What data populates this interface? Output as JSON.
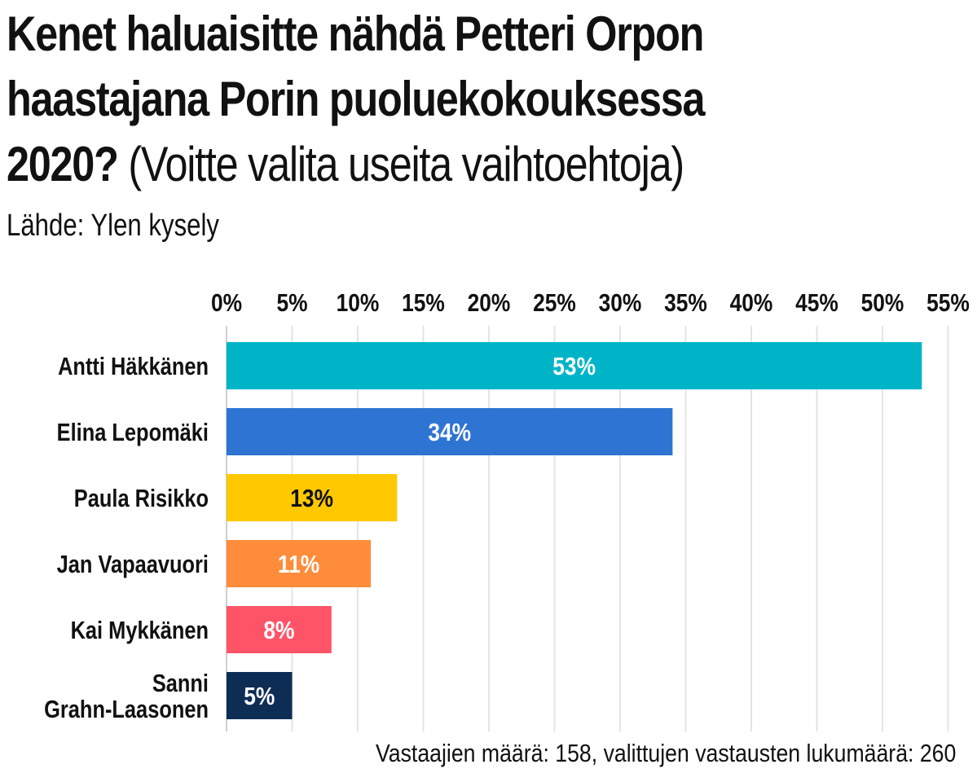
{
  "header": {
    "title_bold": "Kenet haluaisitte nähdä Petteri Orpon haastajana Porin puoluekokouksessa 2020?",
    "title_light": "(Voitte valita useita vaihtoehtoja)",
    "source": "Lähde: Ylen kysely"
  },
  "chart_data": {
    "type": "bar",
    "orientation": "horizontal",
    "title": "Kenet haluaisitte nähdä Petteri Orpon haastajana Porin puoluekokouksessa 2020? (Voitte valita useita vaihtoehtoja)",
    "subtitle": "Lähde: Ylen kysely",
    "categories": [
      [
        "Antti Häkkänen"
      ],
      [
        "Elina Lepomäki"
      ],
      [
        "Paula Risikko"
      ],
      [
        "Jan Vapaavuori"
      ],
      [
        "Kai Mykkänen"
      ],
      [
        "Sanni",
        "Grahn-Laasonen"
      ]
    ],
    "values": [
      53,
      34,
      13,
      11,
      8,
      5
    ],
    "data_labels": [
      "53%",
      "34%",
      "13%",
      "11%",
      "8%",
      "5%"
    ],
    "bar_colors": [
      "#00b4c8",
      "#2e74d2",
      "#ffc800",
      "#ff8c3a",
      "#ff5468",
      "#0e2d55"
    ],
    "label_colors": [
      "#ffffff",
      "#ffffff",
      "#111111",
      "#ffffff",
      "#ffffff",
      "#ffffff"
    ],
    "x_ticks": [
      0,
      5,
      10,
      15,
      20,
      25,
      30,
      35,
      40,
      45,
      50,
      55
    ],
    "x_tick_labels": [
      "0%",
      "5%",
      "10%",
      "15%",
      "20%",
      "25%",
      "30%",
      "35%",
      "40%",
      "45%",
      "50%",
      "55%"
    ],
    "xlim": [
      0,
      55
    ],
    "x_axis_position": "top",
    "grid": true,
    "legend": "none",
    "xlabel": "",
    "ylabel": "",
    "footnote": "Vastaajien määrä: 158, valittujen vastausten lukumäärä: 260"
  }
}
